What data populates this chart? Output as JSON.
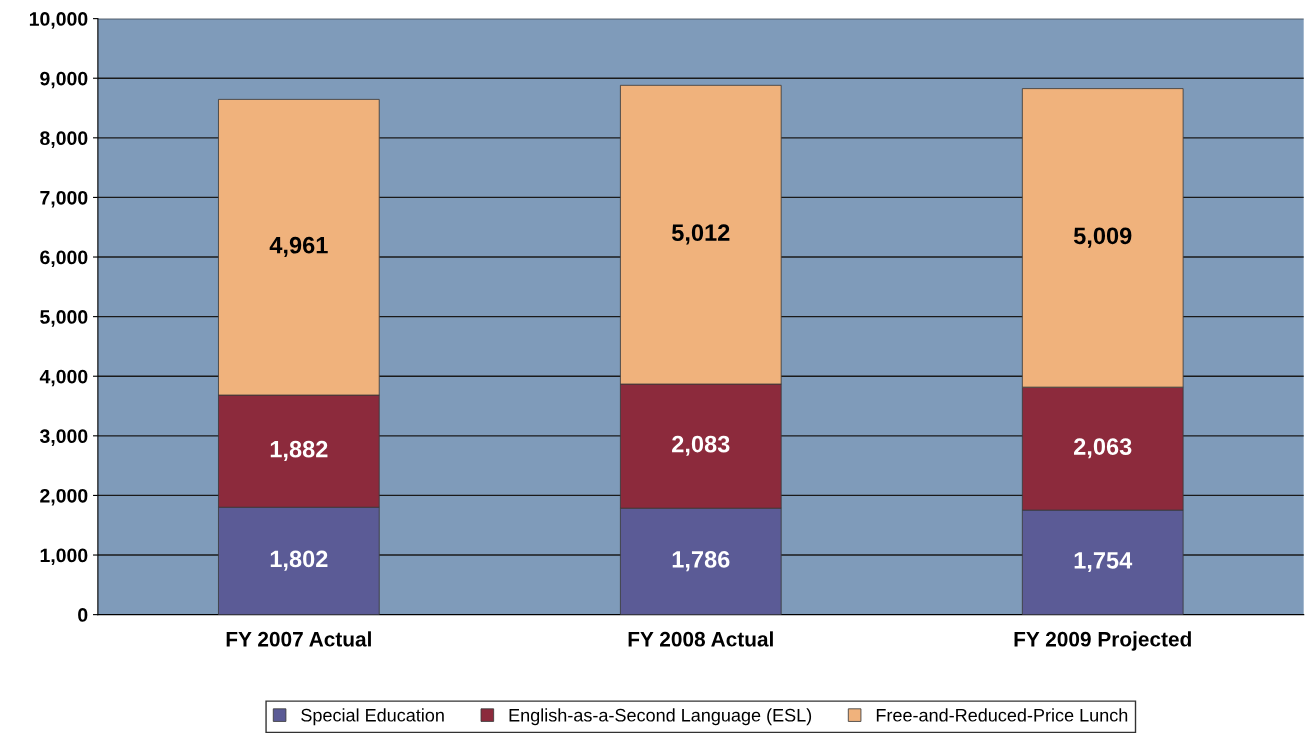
{
  "chart_data": {
    "type": "bar",
    "stacked": true,
    "categories": [
      "FY 2007 Actual",
      "FY 2008 Actual",
      "FY 2009 Projected"
    ],
    "series": [
      {
        "name": "Special Education",
        "color": "#5b5b96",
        "values": [
          1802,
          1786,
          1754
        ],
        "value_labels": [
          "1,802",
          "1,786",
          "1,754"
        ]
      },
      {
        "name": "English-as-a-Second Language (ESL)",
        "color": "#8c2a3c",
        "values": [
          1882,
          2083,
          2063
        ],
        "value_labels": [
          "1,882",
          "2,083",
          "2,063"
        ]
      },
      {
        "name": "Free-and-Reduced-Price Lunch",
        "color": "#f0b27c",
        "values": [
          4961,
          5012,
          5009
        ],
        "value_labels": [
          "4,961",
          "5,012",
          "5,009"
        ]
      }
    ],
    "ylim": [
      0,
      10000
    ],
    "yticks": [
      0,
      {
        "value": 1000,
        "label": "1,000"
      },
      {
        "value": 2000,
        "label": "2,000"
      },
      {
        "value": 3000,
        "label": "3,000"
      },
      {
        "value": 4000,
        "label": "4,000"
      },
      {
        "value": 5000,
        "label": "5,000"
      },
      {
        "value": 6000,
        "label": "6,000"
      },
      {
        "value": 7000,
        "label": "7,000"
      },
      {
        "value": 8000,
        "label": "8,000"
      },
      {
        "value": 9000,
        "label": "9,000"
      },
      {
        "value": 10000,
        "label": "10,000"
      }
    ],
    "grid": "y",
    "legend": "bottom"
  }
}
